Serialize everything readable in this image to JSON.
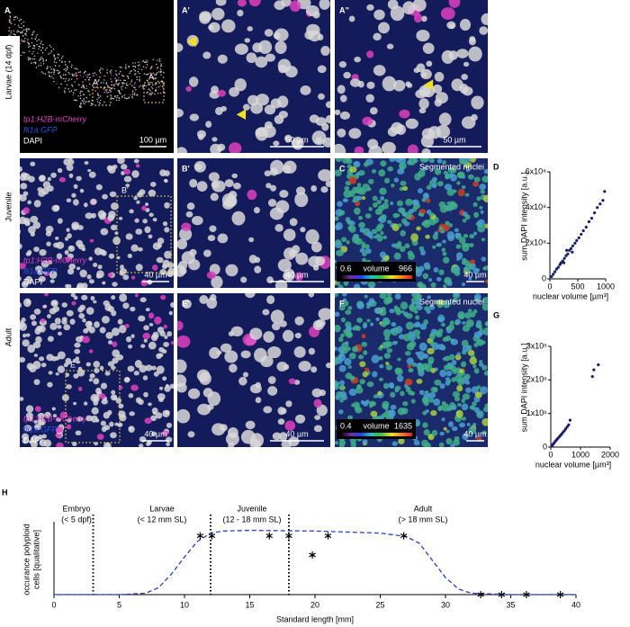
{
  "figure": {
    "panel_a": {
      "label": "A",
      "stage": "Larvae (14 dpf)",
      "box1": "A'",
      "box2": "A''",
      "legend": [
        "tp1:H2B-mCherry",
        "fli1a:GFP",
        "DAPI"
      ],
      "scale": "100 µm"
    },
    "panel_a1": {
      "label": "A'",
      "scale": "50 µm"
    },
    "panel_a2": {
      "label": "A''",
      "scale": "50 µm"
    },
    "panel_b": {
      "label": "B",
      "stage": "Juvenile",
      "box": "B'",
      "legend": [
        "tp1:H2B-mCherry",
        "fli1a:GFP",
        "DAPI"
      ],
      "scale": "40 µm"
    },
    "panel_b1": {
      "label": "B'",
      "scale": "40 µm"
    },
    "panel_c": {
      "label": "C",
      "title": "Segmented nuclei",
      "colorbar_label": "volume",
      "colorbar_min": "0.6",
      "colorbar_max": "966",
      "scale": "40 µm"
    },
    "panel_e": {
      "label": "E",
      "stage": "Adult",
      "box": "E'",
      "legend": [
        "tp1:H2B-mCherry",
        "fli1a:GFP",
        "DAPI"
      ],
      "scale": "40 µm"
    },
    "panel_e1": {
      "label": "E'",
      "scale": "40 µm"
    },
    "panel_f": {
      "label": "F",
      "title": "Segmented nuclei",
      "colorbar_label": "volume",
      "colorbar_min": "0.4",
      "colorbar_max": "1635",
      "scale": "40 µm"
    }
  },
  "chart_data": [
    {
      "type": "scatter",
      "panel": "D",
      "y_label": "sum DAPI intensity [a.u.]",
      "x_label": "nuclear volume [µm³]",
      "color": "#1b1f6b",
      "x": [
        30,
        60,
        90,
        120,
        150,
        180,
        200,
        230,
        260,
        290,
        320,
        350,
        380,
        410,
        450,
        480,
        520,
        560,
        600,
        650,
        700,
        750,
        800,
        850,
        900,
        950,
        980,
        400,
        300,
        250
      ],
      "values": [
        13000000,
        26000000,
        40000000,
        55000000,
        65000000,
        80000000,
        90000000,
        100000000,
        115000000,
        130000000,
        140000000,
        160000000,
        170000000,
        185000000,
        200000000,
        215000000,
        230000000,
        250000000,
        270000000,
        290000000,
        320000000,
        340000000,
        370000000,
        400000000,
        420000000,
        440000000,
        490000000,
        150000000,
        160000000,
        90000000
      ],
      "xlim": [
        0,
        1000
      ],
      "ylim": [
        0,
        600000000
      ],
      "xticks": [
        0,
        500,
        1000
      ],
      "yticks": [
        0,
        {
          "value": 200000000,
          "label": "2x10⁸"
        },
        {
          "value": 400000000,
          "label": "4x10⁸"
        },
        {
          "value": 600000000,
          "label": "6x10⁸"
        }
      ]
    },
    {
      "type": "scatter",
      "panel": "G",
      "y_label": "sum DAPI intensity [a.u.]",
      "x_label": "nuclear volume [µm³]",
      "color": "#1b1f6b",
      "x": [
        30,
        60,
        90,
        120,
        160,
        200,
        240,
        280,
        320,
        360,
        400,
        450,
        500,
        550,
        600,
        650,
        1400,
        1450,
        1600
      ],
      "values": [
        30000,
        60000,
        100000,
        130000,
        180000,
        220000,
        260000,
        300000,
        340000,
        380000,
        430000,
        480000,
        540000,
        600000,
        660000,
        800000,
        2100000,
        2300000,
        2450000
      ],
      "xlim": [
        0,
        2000
      ],
      "ylim": [
        0,
        3000000
      ],
      "xticks": [
        0,
        1000,
        2000
      ],
      "yticks": [
        0,
        {
          "value": 1000000,
          "label": "1x10⁶"
        },
        {
          "value": 2000000,
          "label": "2x10⁶"
        },
        {
          "value": 3000000,
          "label": "3x10⁶"
        }
      ]
    },
    {
      "type": "line",
      "panel": "H",
      "y_label": [
        "occurance polyploid",
        "cells [qualitative]"
      ],
      "x_label": "Standard length [mm]",
      "xlim": [
        0,
        40
      ],
      "ylim": [
        0,
        1
      ],
      "xticks": [
        0,
        5,
        10,
        15,
        20,
        25,
        30,
        35,
        40
      ],
      "stages": [
        {
          "name": "Embryo",
          "range": "(< 5 dpf)"
        },
        {
          "name": "Larvae",
          "range": "(< 12 mm SL)"
        },
        {
          "name": "Juvenile",
          "range": "(12 - 18 mm SL)"
        },
        {
          "name": "Adult",
          "range": "(> 18 mm SL)"
        }
      ],
      "stage_markers": [
        3,
        12,
        18
      ],
      "curve": {
        "color": "#2b3fc9",
        "x": [
          0,
          5,
          7,
          8,
          9,
          10,
          11,
          12,
          13,
          15,
          20,
          25,
          27,
          28,
          29,
          30,
          31,
          32,
          35,
          40
        ],
        "values": [
          0,
          0,
          0.02,
          0.1,
          0.3,
          0.55,
          0.78,
          0.9,
          0.93,
          0.94,
          0.93,
          0.9,
          0.85,
          0.75,
          0.5,
          0.25,
          0.08,
          0.02,
          0,
          0
        ]
      },
      "points": {
        "x": [
          11.2,
          12.1,
          16.5,
          18,
          21,
          26.8,
          19.8,
          32.7,
          34.3,
          36.2,
          38.8
        ],
        "values": [
          0.86,
          0.86,
          0.86,
          0.86,
          0.86,
          0.86,
          0.58,
          0,
          0,
          0,
          0
        ]
      }
    }
  ]
}
